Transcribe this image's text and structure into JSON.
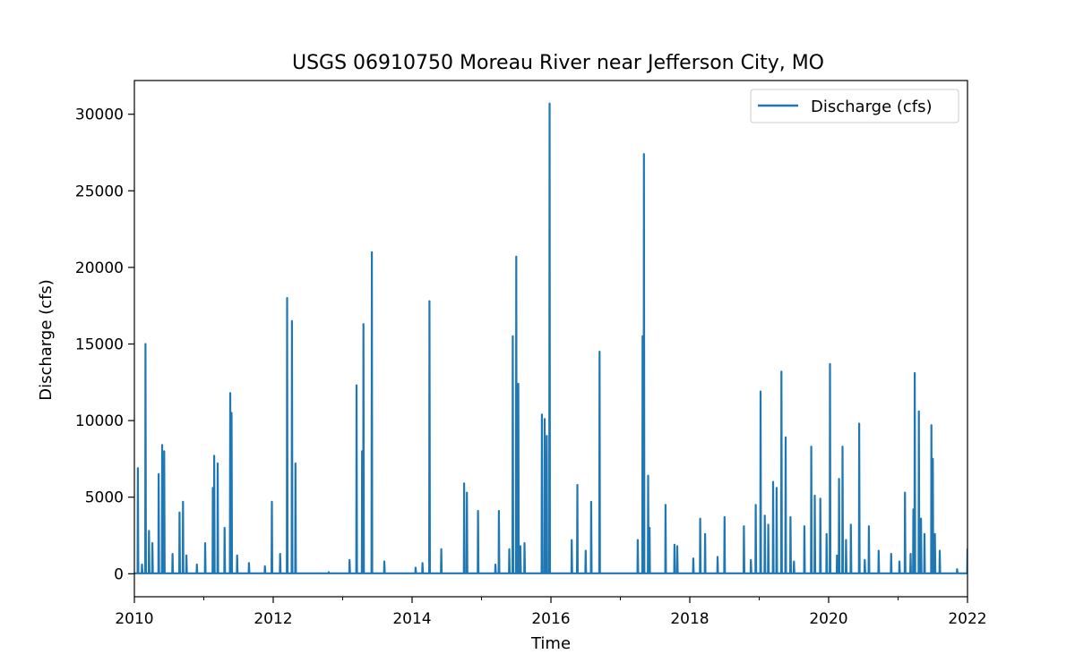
{
  "chart_data": {
    "type": "line",
    "title": "USGS 06910750 Moreau River near Jefferson City, MO",
    "xlabel": "Time",
    "ylabel": "Discharge (cfs)",
    "xlim": [
      2010,
      2022
    ],
    "ylim": [
      -1500,
      32200
    ],
    "x_ticks": [
      2010,
      2012,
      2014,
      2016,
      2018,
      2020,
      2022
    ],
    "x_minor_ticks": [
      2011,
      2013,
      2015,
      2017,
      2019,
      2021
    ],
    "y_ticks": [
      0,
      5000,
      10000,
      15000,
      20000,
      25000,
      30000
    ],
    "grid": false,
    "legend": {
      "position": "upper right",
      "entries": [
        "Discharge (cfs)"
      ]
    },
    "colors": {
      "series": "#1f77b4"
    },
    "series": [
      {
        "name": "Discharge (cfs)",
        "baseline": 30,
        "peaks": [
          {
            "x": 2010.05,
            "y": 6900
          },
          {
            "x": 2010.11,
            "y": 600
          },
          {
            "x": 2010.16,
            "y": 15000
          },
          {
            "x": 2010.21,
            "y": 2800
          },
          {
            "x": 2010.26,
            "y": 2000
          },
          {
            "x": 2010.35,
            "y": 6500
          },
          {
            "x": 2010.4,
            "y": 8400
          },
          {
            "x": 2010.43,
            "y": 8000
          },
          {
            "x": 2010.55,
            "y": 1300
          },
          {
            "x": 2010.65,
            "y": 4000
          },
          {
            "x": 2010.7,
            "y": 4700
          },
          {
            "x": 2010.75,
            "y": 1200
          },
          {
            "x": 2010.9,
            "y": 600
          },
          {
            "x": 2011.02,
            "y": 2000
          },
          {
            "x": 2011.13,
            "y": 5600
          },
          {
            "x": 2011.15,
            "y": 7700
          },
          {
            "x": 2011.2,
            "y": 7200
          },
          {
            "x": 2011.3,
            "y": 3000
          },
          {
            "x": 2011.38,
            "y": 11800
          },
          {
            "x": 2011.4,
            "y": 10500
          },
          {
            "x": 2011.48,
            "y": 1200
          },
          {
            "x": 2011.65,
            "y": 700
          },
          {
            "x": 2011.88,
            "y": 500
          },
          {
            "x": 2011.98,
            "y": 4700
          },
          {
            "x": 2012.1,
            "y": 1300
          },
          {
            "x": 2012.2,
            "y": 18000
          },
          {
            "x": 2012.27,
            "y": 16500
          },
          {
            "x": 2012.32,
            "y": 7200
          },
          {
            "x": 2012.8,
            "y": 100
          },
          {
            "x": 2013.1,
            "y": 900
          },
          {
            "x": 2013.2,
            "y": 12300
          },
          {
            "x": 2013.28,
            "y": 8000
          },
          {
            "x": 2013.3,
            "y": 16300
          },
          {
            "x": 2013.42,
            "y": 21000
          },
          {
            "x": 2013.6,
            "y": 800
          },
          {
            "x": 2014.05,
            "y": 400
          },
          {
            "x": 2014.15,
            "y": 700
          },
          {
            "x": 2014.25,
            "y": 17800
          },
          {
            "x": 2014.42,
            "y": 1600
          },
          {
            "x": 2014.75,
            "y": 5900
          },
          {
            "x": 2014.79,
            "y": 5300
          },
          {
            "x": 2014.95,
            "y": 4100
          },
          {
            "x": 2015.2,
            "y": 600
          },
          {
            "x": 2015.25,
            "y": 4100
          },
          {
            "x": 2015.4,
            "y": 1600
          },
          {
            "x": 2015.45,
            "y": 15500
          },
          {
            "x": 2015.5,
            "y": 20700
          },
          {
            "x": 2015.53,
            "y": 12400
          },
          {
            "x": 2015.56,
            "y": 1800
          },
          {
            "x": 2015.62,
            "y": 2000
          },
          {
            "x": 2015.87,
            "y": 10400
          },
          {
            "x": 2015.91,
            "y": 10100
          },
          {
            "x": 2015.94,
            "y": 9000
          },
          {
            "x": 2015.98,
            "y": 30700
          },
          {
            "x": 2016.3,
            "y": 2200
          },
          {
            "x": 2016.38,
            "y": 5800
          },
          {
            "x": 2016.5,
            "y": 1500
          },
          {
            "x": 2016.58,
            "y": 4700
          },
          {
            "x": 2016.7,
            "y": 14500
          },
          {
            "x": 2017.25,
            "y": 2200
          },
          {
            "x": 2017.32,
            "y": 15500
          },
          {
            "x": 2017.34,
            "y": 27400
          },
          {
            "x": 2017.4,
            "y": 6400
          },
          {
            "x": 2017.42,
            "y": 3000
          },
          {
            "x": 2017.65,
            "y": 4500
          },
          {
            "x": 2017.78,
            "y": 1900
          },
          {
            "x": 2017.82,
            "y": 1800
          },
          {
            "x": 2018.05,
            "y": 1000
          },
          {
            "x": 2018.15,
            "y": 3600
          },
          {
            "x": 2018.22,
            "y": 2600
          },
          {
            "x": 2018.4,
            "y": 1100
          },
          {
            "x": 2018.5,
            "y": 3700
          },
          {
            "x": 2018.78,
            "y": 3100
          },
          {
            "x": 2018.88,
            "y": 900
          },
          {
            "x": 2018.95,
            "y": 4500
          },
          {
            "x": 2019.02,
            "y": 11900
          },
          {
            "x": 2019.08,
            "y": 3800
          },
          {
            "x": 2019.13,
            "y": 3200
          },
          {
            "x": 2019.2,
            "y": 6000
          },
          {
            "x": 2019.25,
            "y": 5600
          },
          {
            "x": 2019.32,
            "y": 13200
          },
          {
            "x": 2019.38,
            "y": 8900
          },
          {
            "x": 2019.45,
            "y": 3700
          },
          {
            "x": 2019.5,
            "y": 800
          },
          {
            "x": 2019.65,
            "y": 3100
          },
          {
            "x": 2019.75,
            "y": 8300
          },
          {
            "x": 2019.8,
            "y": 5100
          },
          {
            "x": 2019.88,
            "y": 4900
          },
          {
            "x": 2019.97,
            "y": 2600
          },
          {
            "x": 2020.02,
            "y": 13700
          },
          {
            "x": 2020.12,
            "y": 1200
          },
          {
            "x": 2020.15,
            "y": 6200
          },
          {
            "x": 2020.2,
            "y": 8300
          },
          {
            "x": 2020.25,
            "y": 2200
          },
          {
            "x": 2020.32,
            "y": 3200
          },
          {
            "x": 2020.44,
            "y": 9800
          },
          {
            "x": 2020.52,
            "y": 900
          },
          {
            "x": 2020.58,
            "y": 3100
          },
          {
            "x": 2020.72,
            "y": 1500
          },
          {
            "x": 2020.9,
            "y": 1300
          },
          {
            "x": 2021.02,
            "y": 800
          },
          {
            "x": 2021.1,
            "y": 5300
          },
          {
            "x": 2021.18,
            "y": 1300
          },
          {
            "x": 2021.22,
            "y": 4200
          },
          {
            "x": 2021.24,
            "y": 13100
          },
          {
            "x": 2021.3,
            "y": 10600
          },
          {
            "x": 2021.33,
            "y": 3600
          },
          {
            "x": 2021.38,
            "y": 2600
          },
          {
            "x": 2021.48,
            "y": 9700
          },
          {
            "x": 2021.5,
            "y": 7500
          },
          {
            "x": 2021.53,
            "y": 2600
          },
          {
            "x": 2021.6,
            "y": 1500
          },
          {
            "x": 2021.85,
            "y": 300
          },
          {
            "x": 2022.0,
            "y": 1600
          }
        ]
      }
    ]
  }
}
